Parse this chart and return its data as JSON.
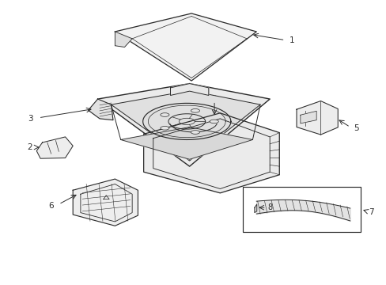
{
  "bg_color": "#ffffff",
  "lc": "#2a2a2a",
  "label_fs": 7.5
}
